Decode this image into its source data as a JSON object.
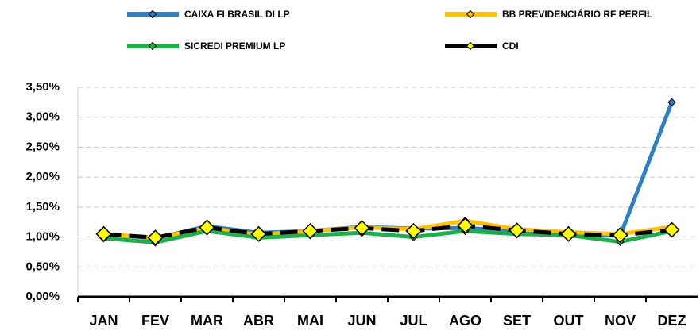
{
  "chart_data": {
    "type": "line",
    "categories": [
      "JAN",
      "FEV",
      "MAR",
      "ABR",
      "MAI",
      "JUN",
      "JUL",
      "AGO",
      "SET",
      "OUT",
      "NOV",
      "DEZ"
    ],
    "series": [
      {
        "name": "CAIXA FI BRASIL DI LP",
        "color": "#2f7fc4",
        "marker_color": "#2f7fc4",
        "values": [
          1.05,
          0.98,
          1.18,
          1.07,
          1.1,
          1.17,
          1.14,
          1.15,
          1.1,
          1.05,
          1.02,
          3.25
        ]
      },
      {
        "name": "BB PREVIDENCIÁRIO RF PERFIL",
        "color": "#ffc000",
        "marker_color": "#ffc000",
        "values": [
          1.05,
          0.99,
          1.15,
          1.04,
          1.1,
          1.16,
          1.13,
          1.27,
          1.13,
          1.08,
          1.05,
          1.17
        ]
      },
      {
        "name": "SICREDI PREMIUM LP",
        "color": "#1fae4b",
        "marker_color": "#1fae4b",
        "values": [
          0.98,
          0.91,
          1.1,
          0.99,
          1.03,
          1.07,
          1.0,
          1.1,
          1.05,
          1.03,
          0.92,
          1.1
        ]
      },
      {
        "name": "CDI",
        "color": "#000000",
        "marker_color": "#ffff00",
        "dashed": true,
        "big_markers": true,
        "values": [
          1.05,
          0.99,
          1.16,
          1.05,
          1.1,
          1.15,
          1.1,
          1.19,
          1.11,
          1.05,
          1.03,
          1.12
        ]
      }
    ],
    "ylim": [
      0,
      3.5
    ],
    "yticks": [
      {
        "value": 0,
        "label": "0,00%"
      },
      {
        "value": 0.5,
        "label": "0,50%"
      },
      {
        "value": 1,
        "label": "1,00%"
      },
      {
        "value": 1.5,
        "label": "1,50%"
      },
      {
        "value": 2,
        "label": "2,00%"
      },
      {
        "value": 2.5,
        "label": "2,50%"
      },
      {
        "value": 3,
        "label": "3,00%"
      },
      {
        "value": 3.5,
        "label": "3,50%"
      }
    ],
    "grid": true
  }
}
